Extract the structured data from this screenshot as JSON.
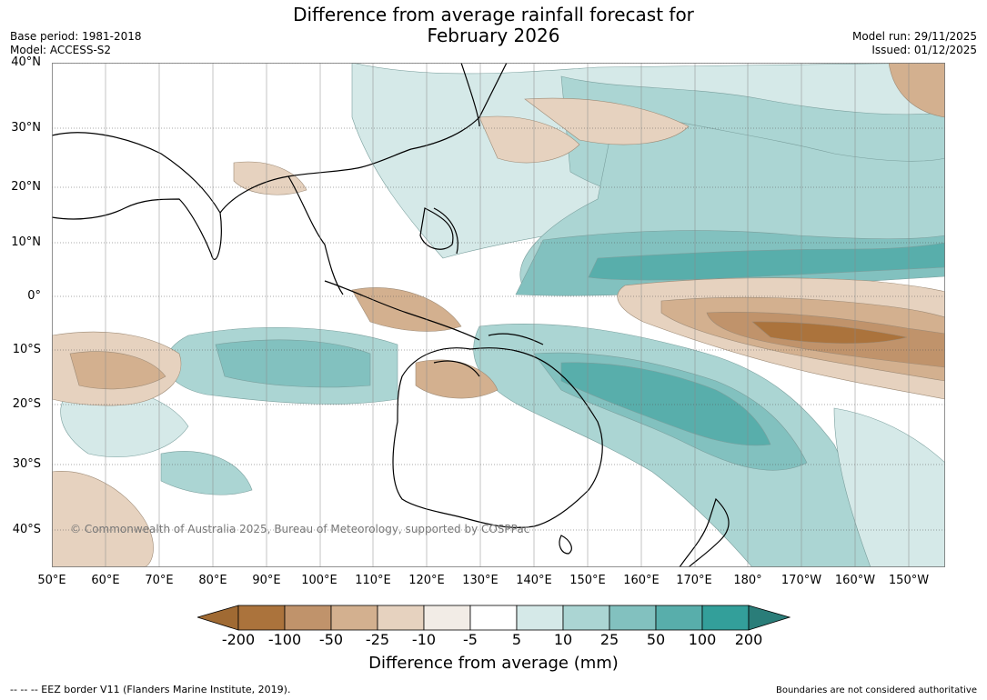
{
  "title": [
    "Difference from average rainfall forecast for",
    "February 2026"
  ],
  "meta": {
    "base_period": "Base period: 1981-2018",
    "model": "Model: ACCESS-S2",
    "model_run": "Model run: 29/11/2025",
    "issued": "Issued: 01/12/2025"
  },
  "map": {
    "region": "Indo-Pacific and Australia",
    "lat_labels": [
      "40°N",
      "30°N",
      "20°N",
      "10°N",
      "0°",
      "10°S",
      "20°S",
      "30°S",
      "40°S"
    ],
    "lon_labels": [
      "50°E",
      "60°E",
      "70°E",
      "80°E",
      "90°E",
      "100°E",
      "110°E",
      "120°E",
      "130°E",
      "140°E",
      "150°E",
      "160°E",
      "170°E",
      "180°",
      "170°W",
      "160°W",
      "150°W"
    ],
    "copyright": "© Commonwealth of Australia 2025, Bureau of Meteorology, supported by COSPPac"
  },
  "colorbar": {
    "labels": [
      "-200",
      "-100",
      "-50",
      "-25",
      "-10",
      "-5",
      "5",
      "10",
      "25",
      "50",
      "100",
      "200"
    ],
    "colors": [
      "#a06a33",
      "#ab733c",
      "#c0936b",
      "#d3b08f",
      "#e6d2bf",
      "#f2ece6",
      "#ffffff",
      "#d5e9e8",
      "#abd5d3",
      "#82c1bf",
      "#58aeab",
      "#339f9a",
      "#2a7d79"
    ],
    "title": "Difference from average (mm)"
  },
  "footer": {
    "eez": "--  --  -- EEZ border V11 (Flanders Marine Institute, 2019).",
    "boundaries": "Boundaries are not considered authoritative"
  }
}
